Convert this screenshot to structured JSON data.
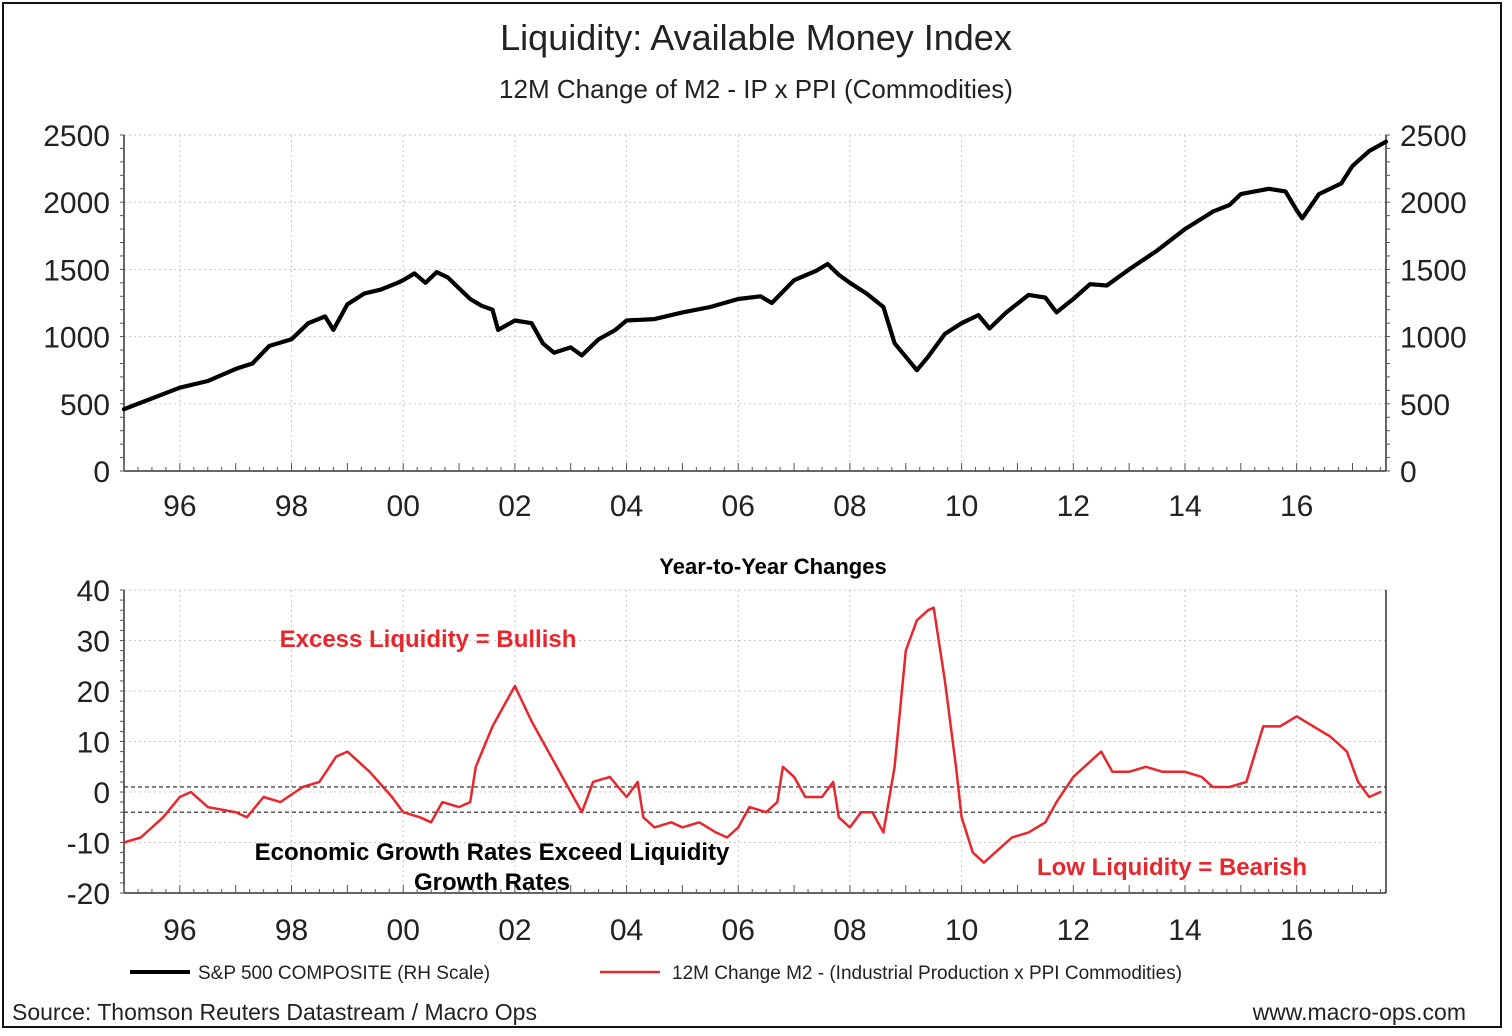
{
  "title": "Liquidity: Available Money Index",
  "subtitle": "12M Change of M2 - IP x PPI (Commodities)",
  "source": "Source: Thomson Reuters Datastream / Macro Ops",
  "website": "www.macro-ops.com",
  "colors": {
    "spx": "#000000",
    "liquidity": "#e8262b",
    "annotation_red": "#e8262b",
    "annotation_black": "#000000"
  },
  "chart_data": [
    {
      "type": "line",
      "id": "top",
      "title": "S&P 500 Composite",
      "xlim": [
        1995.0,
        2017.6
      ],
      "ylim": [
        0,
        2500
      ],
      "x_ticks": [
        1996,
        1998,
        2000,
        2002,
        2004,
        2006,
        2008,
        2010,
        2012,
        2014,
        2016
      ],
      "x_tick_labels": [
        "96",
        "98",
        "00",
        "02",
        "04",
        "06",
        "08",
        "10",
        "12",
        "14",
        "16"
      ],
      "y_ticks": [
        0,
        500,
        1000,
        1500,
        2000,
        2500
      ],
      "y_tick_labels": [
        "0",
        "500",
        "1000",
        "1500",
        "2000",
        "2500"
      ],
      "right_axis": true,
      "grid": true,
      "series": [
        {
          "name": "S&P 500 COMPOSITE (RH Scale)",
          "color": "#000000",
          "points": [
            [
              1995.0,
              460
            ],
            [
              1995.5,
              540
            ],
            [
              1996.0,
              620
            ],
            [
              1996.5,
              670
            ],
            [
              1997.0,
              760
            ],
            [
              1997.3,
              800
            ],
            [
              1997.6,
              930
            ],
            [
              1998.0,
              980
            ],
            [
              1998.3,
              1100
            ],
            [
              1998.6,
              1150
            ],
            [
              1998.75,
              1050
            ],
            [
              1999.0,
              1240
            ],
            [
              1999.3,
              1320
            ],
            [
              1999.6,
              1350
            ],
            [
              1999.9,
              1400
            ],
            [
              2000.0,
              1420
            ],
            [
              2000.2,
              1470
            ],
            [
              2000.4,
              1400
            ],
            [
              2000.6,
              1480
            ],
            [
              2000.8,
              1440
            ],
            [
              2001.0,
              1360
            ],
            [
              2001.2,
              1280
            ],
            [
              2001.4,
              1230
            ],
            [
              2001.6,
              1200
            ],
            [
              2001.7,
              1050
            ],
            [
              2002.0,
              1120
            ],
            [
              2002.3,
              1100
            ],
            [
              2002.5,
              950
            ],
            [
              2002.7,
              880
            ],
            [
              2003.0,
              920
            ],
            [
              2003.2,
              860
            ],
            [
              2003.5,
              980
            ],
            [
              2003.8,
              1050
            ],
            [
              2004.0,
              1120
            ],
            [
              2004.5,
              1130
            ],
            [
              2005.0,
              1180
            ],
            [
              2005.5,
              1220
            ],
            [
              2006.0,
              1280
            ],
            [
              2006.4,
              1300
            ],
            [
              2006.6,
              1250
            ],
            [
              2007.0,
              1420
            ],
            [
              2007.4,
              1490
            ],
            [
              2007.6,
              1540
            ],
            [
              2007.8,
              1460
            ],
            [
              2008.0,
              1400
            ],
            [
              2008.3,
              1320
            ],
            [
              2008.6,
              1220
            ],
            [
              2008.8,
              950
            ],
            [
              2009.0,
              850
            ],
            [
              2009.2,
              750
            ],
            [
              2009.4,
              850
            ],
            [
              2009.7,
              1020
            ],
            [
              2010.0,
              1100
            ],
            [
              2010.3,
              1160
            ],
            [
              2010.5,
              1060
            ],
            [
              2010.8,
              1180
            ],
            [
              2011.2,
              1310
            ],
            [
              2011.5,
              1290
            ],
            [
              2011.7,
              1180
            ],
            [
              2012.0,
              1280
            ],
            [
              2012.3,
              1390
            ],
            [
              2012.6,
              1380
            ],
            [
              2013.0,
              1500
            ],
            [
              2013.5,
              1640
            ],
            [
              2014.0,
              1800
            ],
            [
              2014.5,
              1930
            ],
            [
              2014.8,
              1980
            ],
            [
              2015.0,
              2060
            ],
            [
              2015.5,
              2100
            ],
            [
              2015.8,
              2080
            ],
            [
              2016.0,
              1940
            ],
            [
              2016.1,
              1880
            ],
            [
              2016.4,
              2060
            ],
            [
              2016.8,
              2140
            ],
            [
              2017.0,
              2270
            ],
            [
              2017.3,
              2380
            ],
            [
              2017.6,
              2450
            ]
          ]
        }
      ]
    },
    {
      "type": "line",
      "id": "bottom",
      "title": "Year-to-Year Changes",
      "xlim": [
        1995.0,
        2017.6
      ],
      "ylim": [
        -20,
        40
      ],
      "x_ticks": [
        1996,
        1998,
        2000,
        2002,
        2004,
        2006,
        2008,
        2010,
        2012,
        2014,
        2016
      ],
      "x_tick_labels": [
        "96",
        "98",
        "00",
        "02",
        "04",
        "06",
        "08",
        "10",
        "12",
        "14",
        "16"
      ],
      "y_ticks": [
        -20,
        -10,
        0,
        10,
        20,
        30,
        40
      ],
      "y_tick_labels": [
        "-20",
        "-10",
        "0",
        "10",
        "20",
        "30",
        "40"
      ],
      "grid": true,
      "reference_lines": [
        1,
        -4
      ],
      "annotations": [
        {
          "text": "Excess Liquidity = Bullish",
          "color": "#e8262b"
        },
        {
          "text": "Economic Growth Rates Exceed Liquidity",
          "color": "#000000"
        },
        {
          "text": "Growth Rates",
          "color": "#000000"
        },
        {
          "text": "Low Liquidity = Bearish",
          "color": "#e8262b"
        }
      ],
      "series": [
        {
          "name": "12M Change M2 - (Industrial Production x PPI Commodities)",
          "color": "#e8262b",
          "points": [
            [
              1995.0,
              -10
            ],
            [
              1995.3,
              -9
            ],
            [
              1995.7,
              -5
            ],
            [
              1996.0,
              -1
            ],
            [
              1996.2,
              0
            ],
            [
              1996.5,
              -3
            ],
            [
              1997.0,
              -4
            ],
            [
              1997.2,
              -5
            ],
            [
              1997.5,
              -1
            ],
            [
              1997.8,
              -2
            ],
            [
              1998.2,
              1
            ],
            [
              1998.5,
              2
            ],
            [
              1998.8,
              7
            ],
            [
              1999.0,
              8
            ],
            [
              1999.4,
              4
            ],
            [
              1999.8,
              -1
            ],
            [
              2000.0,
              -4
            ],
            [
              2000.3,
              -5
            ],
            [
              2000.5,
              -6
            ],
            [
              2000.7,
              -2
            ],
            [
              2001.0,
              -3
            ],
            [
              2001.2,
              -2
            ],
            [
              2001.3,
              5
            ],
            [
              2001.6,
              13
            ],
            [
              2001.8,
              17
            ],
            [
              2002.0,
              21
            ],
            [
              2002.3,
              14
            ],
            [
              2002.6,
              8
            ],
            [
              2002.9,
              2
            ],
            [
              2003.2,
              -4
            ],
            [
              2003.4,
              2
            ],
            [
              2003.7,
              3
            ],
            [
              2004.0,
              -1
            ],
            [
              2004.2,
              2
            ],
            [
              2004.3,
              -5
            ],
            [
              2004.5,
              -7
            ],
            [
              2004.8,
              -6
            ],
            [
              2005.0,
              -7
            ],
            [
              2005.3,
              -6
            ],
            [
              2005.6,
              -8
            ],
            [
              2005.8,
              -9
            ],
            [
              2006.0,
              -7
            ],
            [
              2006.2,
              -3
            ],
            [
              2006.5,
              -4
            ],
            [
              2006.7,
              -2
            ],
            [
              2006.8,
              5
            ],
            [
              2007.0,
              3
            ],
            [
              2007.2,
              -1
            ],
            [
              2007.5,
              -1
            ],
            [
              2007.7,
              2
            ],
            [
              2007.8,
              -5
            ],
            [
              2008.0,
              -7
            ],
            [
              2008.2,
              -4
            ],
            [
              2008.4,
              -4
            ],
            [
              2008.6,
              -8
            ],
            [
              2008.8,
              5
            ],
            [
              2009.0,
              28
            ],
            [
              2009.2,
              34
            ],
            [
              2009.4,
              36
            ],
            [
              2009.5,
              36.5
            ],
            [
              2009.7,
              22
            ],
            [
              2009.9,
              5
            ],
            [
              2010.0,
              -5
            ],
            [
              2010.2,
              -12
            ],
            [
              2010.4,
              -14
            ],
            [
              2010.6,
              -12
            ],
            [
              2010.9,
              -9
            ],
            [
              2011.2,
              -8
            ],
            [
              2011.5,
              -6
            ],
            [
              2011.7,
              -2
            ],
            [
              2012.0,
              3
            ],
            [
              2012.3,
              6
            ],
            [
              2012.5,
              8
            ],
            [
              2012.7,
              4
            ],
            [
              2013.0,
              4
            ],
            [
              2013.3,
              5
            ],
            [
              2013.6,
              4
            ],
            [
              2014.0,
              4
            ],
            [
              2014.3,
              3
            ],
            [
              2014.5,
              1
            ],
            [
              2014.8,
              1
            ],
            [
              2015.1,
              2
            ],
            [
              2015.4,
              13
            ],
            [
              2015.7,
              13
            ],
            [
              2016.0,
              15
            ],
            [
              2016.3,
              13
            ],
            [
              2016.6,
              11
            ],
            [
              2016.9,
              8
            ],
            [
              2017.1,
              2
            ],
            [
              2017.3,
              -1
            ],
            [
              2017.5,
              0
            ]
          ]
        }
      ]
    }
  ],
  "legend": [
    {
      "label": "S&P 500 COMPOSITE (RH Scale)",
      "color": "#000000"
    },
    {
      "label": "12M Change M2 - (Industrial Production x PPI Commodities)",
      "color": "#e8262b"
    }
  ]
}
